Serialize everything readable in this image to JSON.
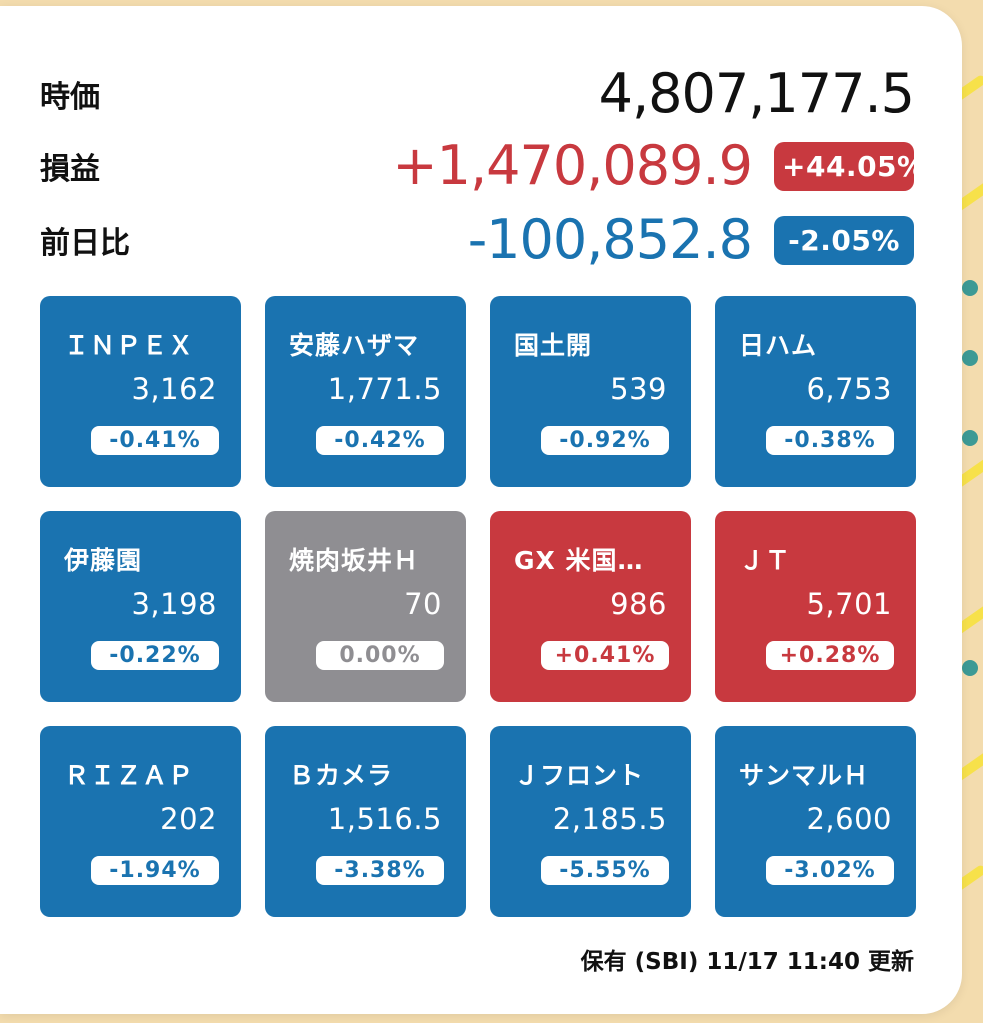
{
  "colors": {
    "up": "#c8393f",
    "down": "#1a73b0",
    "flat": "#8f8e92"
  },
  "summary": {
    "jika": {
      "label": "時価",
      "value": "4,807,177.5"
    },
    "soneki": {
      "label": "損益",
      "value": "+1,470,089.9",
      "badge": "+44.05%"
    },
    "zenjitsu": {
      "label": "前日比",
      "value": "-100,852.8",
      "badge": "-2.05%"
    }
  },
  "holdings": [
    {
      "name": "ＩＮＰＥＸ",
      "price": "3,162",
      "change": "-0.41%",
      "trend": "down"
    },
    {
      "name": "安藤ハザマ",
      "price": "1,771.5",
      "change": "-0.42%",
      "trend": "down"
    },
    {
      "name": "国土開",
      "price": "539",
      "change": "-0.92%",
      "trend": "down"
    },
    {
      "name": "日ハム",
      "price": "6,753",
      "change": "-0.38%",
      "trend": "down"
    },
    {
      "name": "伊藤園",
      "price": "3,198",
      "change": "-0.22%",
      "trend": "down"
    },
    {
      "name": "焼肉坂井Ｈ",
      "price": "70",
      "change": "0.00%",
      "trend": "flat"
    },
    {
      "name": "GX 米国優…",
      "price": "986",
      "change": "+0.41%",
      "trend": "up"
    },
    {
      "name": "ＪＴ",
      "price": "5,701",
      "change": "+0.28%",
      "trend": "up"
    },
    {
      "name": "ＲＩＺＡＰ",
      "price": "202",
      "change": "-1.94%",
      "trend": "down"
    },
    {
      "name": "Ｂカメラ",
      "price": "1,516.5",
      "change": "-3.38%",
      "trend": "down"
    },
    {
      "name": "Ｊフロント",
      "price": "2,185.5",
      "change": "-5.55%",
      "trend": "down"
    },
    {
      "name": "サンマルＨ",
      "price": "2,600",
      "change": "-3.02%",
      "trend": "down"
    }
  ],
  "footer": {
    "text": "保有 (SBI) 11/17 11:40 更新"
  }
}
